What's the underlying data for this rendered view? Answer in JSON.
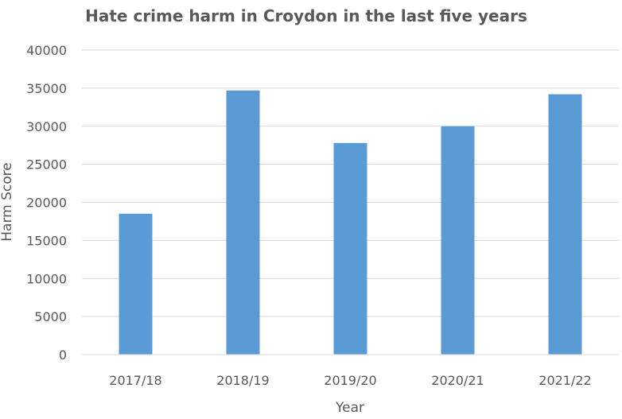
{
  "chart_data": {
    "type": "bar",
    "title": "Hate crime harm in Croydon in the last five years",
    "xlabel": "Year",
    "ylabel": "Harm Score",
    "categories": [
      "2017/18",
      "2018/19",
      "2019/20",
      "2020/21",
      "2021/22"
    ],
    "values": [
      18500,
      34700,
      27800,
      30000,
      34200
    ],
    "ylim": [
      0,
      40000
    ],
    "yticks": [
      0,
      5000,
      10000,
      15000,
      20000,
      25000,
      30000,
      35000,
      40000
    ],
    "grid": true,
    "bar_color": "#5b9bd5",
    "grid_color": "#d9d9d9",
    "text_color": "#595959"
  }
}
